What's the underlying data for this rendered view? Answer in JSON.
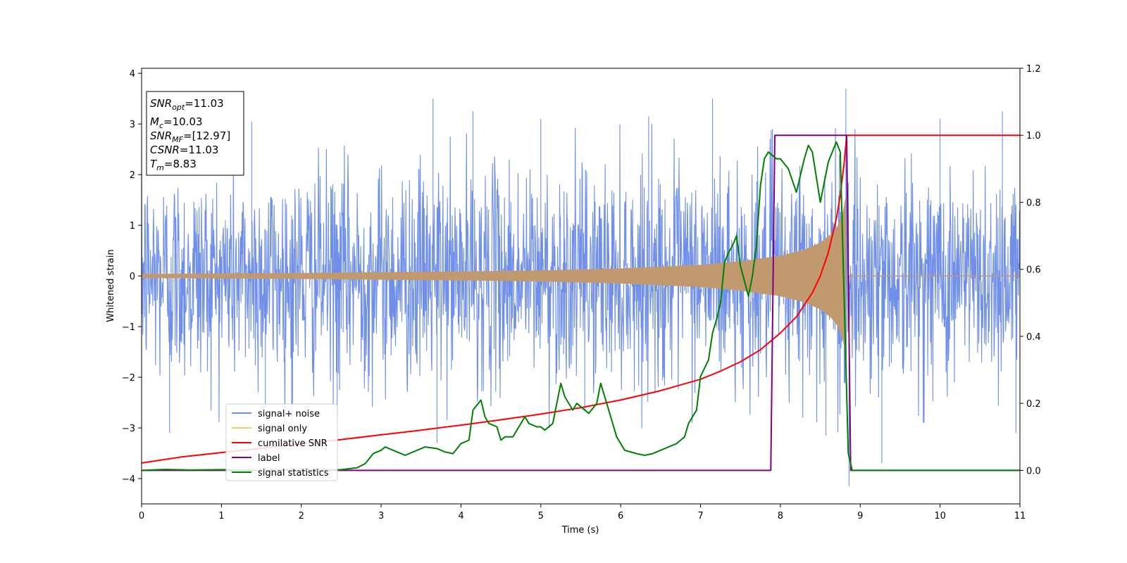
{
  "chart_data": {
    "type": "line",
    "xlabel": "Time (s)",
    "ylabel": "Whitened strain",
    "xlim": [
      0,
      11
    ],
    "ylim": [
      -4.5,
      4.1
    ],
    "y2lim": [
      -0.1,
      1.2
    ],
    "xticks": [
      "0",
      "1",
      "2",
      "3",
      "4",
      "5",
      "6",
      "7",
      "8",
      "9",
      "10",
      "11"
    ],
    "yticks": [
      "−4",
      "−3",
      "−2",
      "−1",
      "0",
      "1",
      "2",
      "3",
      "4"
    ],
    "y2ticks": [
      "0.0",
      "0.2",
      "0.4",
      "0.6",
      "0.8",
      "1.0",
      "1.2"
    ],
    "xtick_values": [
      0,
      1,
      2,
      3,
      4,
      5,
      6,
      7,
      8,
      9,
      10,
      11
    ],
    "ytick_values": [
      -4,
      -3,
      -2,
      -1,
      0,
      1,
      2,
      3,
      4
    ],
    "y2tick_values": [
      0.0,
      0.2,
      0.4,
      0.6,
      0.8,
      1.0,
      1.2
    ],
    "noise": {
      "sample_step": 0.005,
      "sigma": 1.05,
      "spikes": [
        [
          0.35,
          -3.1
        ],
        [
          1.38,
          3.05
        ],
        [
          1.55,
          -2.6
        ],
        [
          1.88,
          -2.9
        ],
        [
          2.45,
          -2.85
        ],
        [
          3.65,
          3.5
        ],
        [
          3.7,
          -3.3
        ],
        [
          4.15,
          3.25
        ],
        [
          5.0,
          3.1
        ],
        [
          5.55,
          -2.65
        ],
        [
          6.35,
          3.15
        ],
        [
          7.15,
          3.5
        ],
        [
          7.9,
          2.9
        ],
        [
          8.57,
          -3.15
        ],
        [
          8.82,
          3.7
        ],
        [
          8.86,
          -4.15
        ],
        [
          9.27,
          -3.7
        ],
        [
          10.0,
          3.1
        ],
        [
          10.78,
          3.25
        ],
        [
          10.95,
          -3.1
        ]
      ]
    },
    "series": [
      {
        "name": "signal+ noise",
        "color": "#6f8fe8",
        "axis": "left"
      },
      {
        "name": "signal only",
        "color": "#f5c86a",
        "axis": "left",
        "fill_color": "#c09a6e",
        "amplitude": [
          [
            0,
            0.04
          ],
          [
            2,
            0.06
          ],
          [
            4,
            0.09
          ],
          [
            5,
            0.11
          ],
          [
            6,
            0.15
          ],
          [
            7,
            0.22
          ],
          [
            7.5,
            0.29
          ],
          [
            8,
            0.4
          ],
          [
            8.3,
            0.52
          ],
          [
            8.5,
            0.66
          ],
          [
            8.65,
            0.85
          ],
          [
            8.72,
            1.0
          ],
          [
            8.78,
            1.25
          ],
          [
            8.82,
            1.6
          ],
          [
            8.83,
            1.7
          ]
        ],
        "end": 8.83
      },
      {
        "name": "cumilative SNR",
        "color": "#ff0000",
        "axis": "right",
        "x": [
          0,
          0.5,
          1,
          1.5,
          2,
          2.5,
          3,
          3.5,
          4,
          4.5,
          5,
          5.5,
          6,
          6.5,
          7,
          7.25,
          7.5,
          7.75,
          8,
          8.2,
          8.4,
          8.5,
          8.6,
          8.7,
          8.75,
          8.8,
          8.83,
          11
        ],
        "y": [
          0.022,
          0.04,
          0.053,
          0.066,
          0.079,
          0.092,
          0.106,
          0.12,
          0.135,
          0.151,
          0.168,
          0.187,
          0.21,
          0.238,
          0.272,
          0.296,
          0.324,
          0.36,
          0.41,
          0.458,
          0.53,
          0.58,
          0.65,
          0.75,
          0.82,
          0.92,
          1.0,
          1.0
        ]
      },
      {
        "name": "label",
        "color": "#800080",
        "axis": "right",
        "x": [
          0,
          7.88,
          7.93,
          8.83,
          8.88,
          11
        ],
        "y": [
          0,
          0,
          1,
          1,
          0,
          0
        ]
      },
      {
        "name": "signal statistics",
        "color": "#008000",
        "axis": "right",
        "x": [
          0,
          0.3,
          0.6,
          1,
          1.5,
          2,
          2.5,
          2.7,
          2.8,
          2.9,
          3,
          3.05,
          3.15,
          3.25,
          3.3,
          3.45,
          3.55,
          3.7,
          3.8,
          3.9,
          4.0,
          4.1,
          4.15,
          4.25,
          4.3,
          4.35,
          4.45,
          4.5,
          4.55,
          4.65,
          4.75,
          4.8,
          4.85,
          4.95,
          5.0,
          5.05,
          5.15,
          5.25,
          5.3,
          5.4,
          5.45,
          5.55,
          5.6,
          5.7,
          5.75,
          5.85,
          5.95,
          6.0,
          6.05,
          6.2,
          6.3,
          6.4,
          6.5,
          6.6,
          6.7,
          6.75,
          6.8,
          6.85,
          6.95,
          7.0,
          7.1,
          7.15,
          7.2,
          7.25,
          7.3,
          7.35,
          7.4,
          7.45,
          7.5,
          7.6,
          7.65,
          7.7,
          7.75,
          7.8,
          7.85,
          7.9,
          7.95,
          8.0,
          8.1,
          8.2,
          8.3,
          8.35,
          8.4,
          8.5,
          8.6,
          8.7,
          8.75,
          8.8,
          8.85,
          8.9,
          9.0,
          11
        ],
        "y": [
          0.0,
          0.003,
          0.001,
          0.002,
          0.0,
          0.001,
          0.002,
          0.008,
          0.02,
          0.05,
          0.06,
          0.07,
          0.06,
          0.05,
          0.045,
          0.06,
          0.07,
          0.065,
          0.055,
          0.05,
          0.08,
          0.09,
          0.18,
          0.21,
          0.16,
          0.14,
          0.13,
          0.09,
          0.1,
          0.1,
          0.14,
          0.16,
          0.14,
          0.13,
          0.13,
          0.12,
          0.14,
          0.26,
          0.22,
          0.18,
          0.2,
          0.18,
          0.17,
          0.2,
          0.26,
          0.18,
          0.1,
          0.08,
          0.06,
          0.05,
          0.045,
          0.05,
          0.06,
          0.07,
          0.08,
          0.09,
          0.1,
          0.14,
          0.18,
          0.28,
          0.33,
          0.41,
          0.45,
          0.5,
          0.62,
          0.65,
          0.67,
          0.7,
          0.61,
          0.52,
          0.58,
          0.67,
          0.85,
          0.93,
          0.95,
          0.94,
          0.93,
          0.93,
          0.9,
          0.83,
          0.93,
          0.97,
          0.95,
          0.8,
          0.92,
          0.98,
          0.95,
          0.5,
          0.05,
          0.0,
          0.0,
          0.0
        ]
      }
    ],
    "legend_position": "lower-left",
    "info_box": [
      "=11.03",
      "=10.03",
      "=[12.97]",
      "=11.03",
      "=8.83"
    ],
    "info_labels": [
      {
        "base": "SNR",
        "sub": "opt"
      },
      {
        "base": "M",
        "sub": "c"
      },
      {
        "base": "SNR",
        "sub": "MF"
      },
      {
        "base": "CSNR",
        "sub": ""
      },
      {
        "base": "T",
        "sub": "m"
      }
    ]
  }
}
